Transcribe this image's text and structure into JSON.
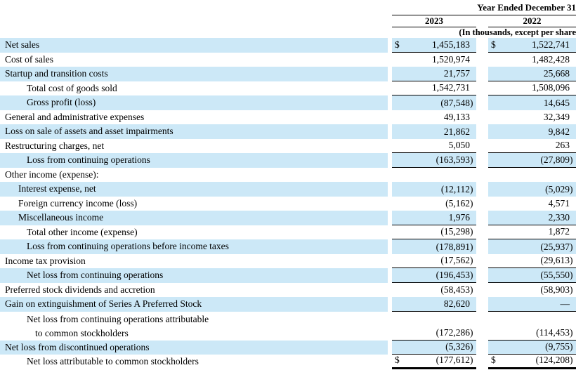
{
  "document": {
    "currency_symbol": "$",
    "colors": {
      "row_highlight": "#cce8f7",
      "rule": "#000000",
      "text": "#000000"
    },
    "header": {
      "period_title": "Year Ended December 31",
      "year_columns": [
        "2023",
        "2022"
      ],
      "units_note": "(In thousands, except per share"
    },
    "rows": [
      {
        "label": "Net sales",
        "indent": 0,
        "shaded": true,
        "dollar": true,
        "values": [
          "1,455,183",
          "1,522,741"
        ],
        "underline": "single"
      },
      {
        "label": "Cost of sales",
        "indent": 0,
        "shaded": false,
        "dollar": false,
        "values": [
          "1,520,974",
          "1,482,428"
        ],
        "underline": "none"
      },
      {
        "label": "Startup and transition costs",
        "indent": 0,
        "shaded": true,
        "dollar": false,
        "values": [
          "21,757",
          "25,668"
        ],
        "underline": "single"
      },
      {
        "label": "Total cost of goods sold",
        "indent": 2,
        "shaded": false,
        "dollar": false,
        "values": [
          "1,542,731",
          "1,508,096"
        ],
        "underline": "single"
      },
      {
        "label": "Gross profit (loss)",
        "indent": 2,
        "shaded": true,
        "dollar": false,
        "values": [
          "(87,548)",
          "14,645"
        ],
        "underline": "none"
      },
      {
        "label": "General and administrative expenses",
        "indent": 0,
        "shaded": false,
        "dollar": false,
        "values": [
          "49,133",
          "32,349"
        ],
        "underline": "none"
      },
      {
        "label": "Loss on sale of assets and asset impairments",
        "indent": 0,
        "shaded": true,
        "dollar": false,
        "values": [
          "21,862",
          "9,842"
        ],
        "underline": "none"
      },
      {
        "label": "Restructuring charges, net",
        "indent": 0,
        "shaded": false,
        "dollar": false,
        "values": [
          "5,050",
          "263"
        ],
        "underline": "single"
      },
      {
        "label": "Loss from continuing operations",
        "indent": 2,
        "shaded": true,
        "dollar": false,
        "values": [
          "(163,593)",
          "(27,809)"
        ],
        "underline": "single"
      },
      {
        "label": "Other income (expense):",
        "indent": 0,
        "shaded": false,
        "dollar": false,
        "values": [
          "",
          ""
        ],
        "underline": "none"
      },
      {
        "label": "Interest expense, net",
        "indent": 1,
        "shaded": true,
        "dollar": false,
        "values": [
          "(12,112)",
          "(5,029)"
        ],
        "underline": "none"
      },
      {
        "label": "Foreign currency income (loss)",
        "indent": 1,
        "shaded": false,
        "dollar": false,
        "values": [
          "(5,162)",
          "4,571"
        ],
        "underline": "none"
      },
      {
        "label": "Miscellaneous income",
        "indent": 1,
        "shaded": true,
        "dollar": false,
        "values": [
          "1,976",
          "2,330"
        ],
        "underline": "single"
      },
      {
        "label": "Total other income (expense)",
        "indent": 2,
        "shaded": false,
        "dollar": false,
        "values": [
          "(15,298)",
          "1,872"
        ],
        "underline": "single"
      },
      {
        "label": "Loss from continuing operations before income taxes",
        "indent": 2,
        "shaded": true,
        "dollar": false,
        "values": [
          "(178,891)",
          "(25,937)"
        ],
        "underline": "none"
      },
      {
        "label": "Income tax provision",
        "indent": 0,
        "shaded": false,
        "dollar": false,
        "values": [
          "(17,562)",
          "(29,613)"
        ],
        "underline": "single"
      },
      {
        "label": "Net loss from continuing operations",
        "indent": 2,
        "shaded": true,
        "dollar": false,
        "values": [
          "(196,453)",
          "(55,550)"
        ],
        "underline": "single"
      },
      {
        "label": "Preferred stock dividends and accretion",
        "indent": 0,
        "shaded": false,
        "dollar": false,
        "values": [
          "(58,453)",
          "(58,903)"
        ],
        "underline": "none"
      },
      {
        "label": "Gain on extinguishment of Series A Preferred Stock",
        "indent": 0,
        "shaded": true,
        "dollar": false,
        "values": [
          "82,620",
          "—"
        ],
        "underline": "single"
      },
      {
        "label": "Net loss from continuing operations attributable",
        "label2": "to common stockholders",
        "indent": 2,
        "shaded": false,
        "dollar": false,
        "values": [
          "(172,286)",
          "(114,453)"
        ],
        "underline": "single"
      },
      {
        "label": "Net loss from discontinued operations",
        "indent": 0,
        "shaded": true,
        "dollar": false,
        "values": [
          "(5,326)",
          "(9,755)"
        ],
        "underline": "single"
      },
      {
        "label": "Net loss attributable to common stockholders",
        "indent": 2,
        "shaded": false,
        "dollar": true,
        "values": [
          "(177,612)",
          "(124,208)"
        ],
        "underline": "thick"
      }
    ]
  }
}
